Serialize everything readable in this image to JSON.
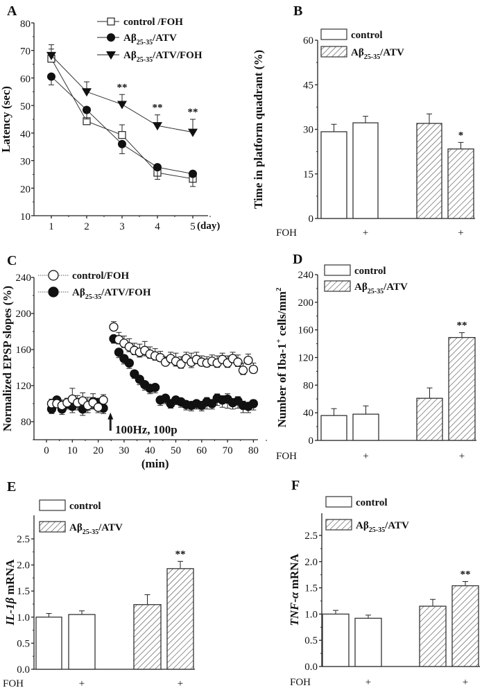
{
  "chart_data": [
    {
      "panel": "A",
      "type": "line",
      "xlabel": "(day)",
      "ylabel_parts": [
        {
          "t": "Latency (sec)"
        }
      ],
      "x": [
        1,
        2,
        3,
        4,
        5
      ],
      "xticks": [
        "1",
        "2",
        "3",
        "4",
        "5"
      ],
      "yticks": [
        10,
        20,
        30,
        40,
        50,
        60,
        70,
        80
      ],
      "ylim": [
        10,
        80
      ],
      "series": [
        {
          "name_parts": [
            "control /FOH",
            "",
            ""
          ],
          "marker": "open-square",
          "values": [
            67.0,
            44.3,
            39.3,
            25.6,
            23.4
          ],
          "errors": [
            3.5,
            3.4,
            3.7,
            3.0,
            2.7
          ]
        },
        {
          "name_parts": [
            "Aβ",
            "25-35",
            "/ATV"
          ],
          "marker": "filled-circle",
          "values": [
            60.5,
            48.4,
            36.0,
            27.6,
            25.2
          ],
          "errors": [
            3.0,
            3.3,
            3.5,
            4.4,
            4.6
          ]
        },
        {
          "name_parts": [
            "Aβ",
            "25-35",
            "/ATV/FOH"
          ],
          "marker": "filled-triangle-down",
          "values": [
            68.2,
            55.0,
            50.4,
            42.7,
            40.3
          ],
          "errors": [
            3.9,
            3.6,
            3.6,
            3.9,
            4.7
          ]
        }
      ],
      "annotations": [
        {
          "x": 3,
          "y": 54.0,
          "text": "**"
        },
        {
          "x": 4,
          "y": 46.6,
          "text": "**"
        },
        {
          "x": 5,
          "y": 45.0,
          "text": "**"
        }
      ]
    },
    {
      "panel": "B",
      "type": "bar",
      "ylabel_parts": [
        {
          "t": "Time in platform quadrant (%)"
        }
      ],
      "yticks": [
        0,
        15,
        30,
        45,
        60
      ],
      "ylim": [
        0,
        60
      ],
      "groups": [
        {
          "name_parts": [
            "control",
            "",
            ""
          ],
          "pattern": "open"
        },
        {
          "name_parts": [
            "Aβ",
            "25-35",
            "/ATV"
          ],
          "pattern": "hatched"
        }
      ],
      "bars": [
        {
          "group": 0,
          "value": 29.2,
          "error": 2.5,
          "annotation": ""
        },
        {
          "group": 0,
          "value": 32.2,
          "error": 2.2,
          "annotation": ""
        },
        {
          "group": 1,
          "value": 32.0,
          "error": 3.2,
          "annotation": ""
        },
        {
          "group": 1,
          "value": 23.4,
          "error": 2.2,
          "annotation": "*"
        }
      ],
      "row_label": "FOH",
      "row_marks": [
        "",
        "+",
        "",
        "+"
      ]
    },
    {
      "panel": "C",
      "type": "scatter",
      "xlabel": "(min)",
      "ylabel_parts": [
        {
          "t": "Normalized EPSP slopes (%)"
        }
      ],
      "xticks": [
        0,
        10,
        20,
        30,
        40,
        50,
        60,
        70,
        80
      ],
      "yticks": [
        80,
        120,
        160,
        200,
        240
      ],
      "xlim": [
        -5,
        82
      ],
      "ylim": [
        60,
        240
      ],
      "stimulus_label": "100Hz, 100p",
      "stimulus_x": 25,
      "series": [
        {
          "name_parts": [
            "control/FOH",
            "",
            ""
          ],
          "marker": "open-circle",
          "x": [
            2,
            4,
            6,
            8,
            10,
            12,
            14,
            16,
            18,
            20,
            22,
            26,
            28,
            30,
            32,
            34,
            36,
            38,
            40,
            42,
            44,
            46,
            48,
            50,
            52,
            54,
            56,
            58,
            60,
            62,
            64,
            66,
            68,
            70,
            72,
            74,
            76,
            78,
            80
          ],
          "values": [
            100,
            100,
            98,
            101,
            105,
            101,
            103,
            98,
            101,
            96,
            104,
            185,
            171,
            167,
            163,
            159,
            157,
            159,
            155,
            153,
            151,
            146,
            150,
            147,
            144,
            150,
            146,
            149,
            146,
            145,
            147,
            145,
            149,
            145,
            150,
            146,
            137,
            148,
            138
          ],
          "errors": [
            5,
            6,
            6,
            5,
            12,
            8,
            9,
            9,
            10,
            10,
            6,
            6,
            8,
            8,
            9,
            8,
            9,
            10,
            8,
            8,
            7,
            6,
            7,
            9,
            8,
            7,
            10,
            8,
            7,
            7,
            7,
            8,
            7,
            8,
            7,
            8,
            8,
            7,
            7
          ]
        },
        {
          "name_parts": [
            "Aβ",
            "25-35",
            "/ATV/FOH"
          ],
          "marker": "filled-circle",
          "x": [
            2,
            4,
            6,
            8,
            10,
            12,
            14,
            16,
            18,
            20,
            22,
            26,
            28,
            30,
            32,
            34,
            36,
            38,
            40,
            42,
            44,
            46,
            48,
            50,
            52,
            54,
            56,
            58,
            60,
            62,
            64,
            66,
            68,
            70,
            72,
            74,
            76,
            78,
            80
          ],
          "values": [
            94,
            104,
            94,
            100,
            97,
            101,
            94,
            98,
            102,
            101,
            95,
            172,
            157,
            150,
            145,
            133,
            127,
            121,
            117,
            118,
            104,
            106,
            100,
            104,
            102,
            99,
            98,
            100,
            98,
            102,
            100,
            106,
            104,
            105,
            101,
            103,
            98,
            97,
            100
          ],
          "errors": [
            5,
            6,
            6,
            6,
            7,
            8,
            7,
            8,
            8,
            7,
            6,
            5,
            6,
            6,
            6,
            5,
            6,
            6,
            6,
            6,
            6,
            6,
            5,
            5,
            6,
            6,
            6,
            6,
            6,
            8,
            6,
            8,
            8,
            10,
            7,
            8,
            8,
            7,
            7
          ]
        }
      ]
    },
    {
      "panel": "D",
      "type": "bar",
      "ylabel_parts": [
        {
          "t": "Number of Iba-1"
        },
        {
          "t": "+",
          "s": "sup"
        },
        {
          "t": " cells/mm"
        },
        {
          "t": "2",
          "s": "sup"
        }
      ],
      "yticks": [
        0,
        40,
        80,
        120,
        160,
        200,
        240
      ],
      "ylim": [
        0,
        240
      ],
      "groups": [
        {
          "name_parts": [
            "control",
            "",
            ""
          ],
          "pattern": "open"
        },
        {
          "name_parts": [
            "Aβ",
            "25-35",
            "/ATV"
          ],
          "pattern": "hatched"
        }
      ],
      "bars": [
        {
          "group": 0,
          "value": 36,
          "error": 10,
          "annotation": ""
        },
        {
          "group": 0,
          "value": 38,
          "error": 12,
          "annotation": ""
        },
        {
          "group": 1,
          "value": 61,
          "error": 15,
          "annotation": ""
        },
        {
          "group": 1,
          "value": 149,
          "error": 7,
          "annotation": "**"
        }
      ],
      "row_label": "FOH",
      "row_marks": [
        "",
        "+",
        "",
        "+"
      ]
    },
    {
      "panel": "E",
      "type": "bar",
      "ylabel_parts": [
        {
          "t": "IL-1β",
          "s": "italic"
        },
        {
          "t": " mRNA"
        }
      ],
      "yticks": [
        0.0,
        0.5,
        1.0,
        1.5,
        2.0,
        2.5
      ],
      "ytick_labels": [
        "0.0",
        "0.5",
        "1.0",
        "1.5",
        "2.0",
        "2.5"
      ],
      "ylim": [
        0,
        2.8
      ],
      "groups": [
        {
          "name_parts": [
            "control",
            "",
            ""
          ],
          "pattern": "open"
        },
        {
          "name_parts": [
            "Aβ",
            "25-35",
            "/ATV"
          ],
          "pattern": "hatched"
        }
      ],
      "bars": [
        {
          "group": 0,
          "value": 1.0,
          "error": 0.07,
          "annotation": ""
        },
        {
          "group": 0,
          "value": 1.05,
          "error": 0.07,
          "annotation": ""
        },
        {
          "group": 1,
          "value": 1.24,
          "error": 0.19,
          "annotation": ""
        },
        {
          "group": 1,
          "value": 1.93,
          "error": 0.14,
          "annotation": "**"
        }
      ],
      "row_label": "FOH",
      "row_marks": [
        "",
        "+",
        "",
        "+"
      ]
    },
    {
      "panel": "F",
      "type": "bar",
      "ylabel_parts": [
        {
          "t": "TNF-α",
          "s": "italic"
        },
        {
          "t": " mRNA"
        }
      ],
      "yticks": [
        0.0,
        0.5,
        1.0,
        1.5,
        2.0,
        2.5
      ],
      "ytick_labels": [
        "0.0",
        "0.5",
        "1.0",
        "1.5",
        "2.0",
        "2.5"
      ],
      "ylim": [
        0,
        2.8
      ],
      "groups": [
        {
          "name_parts": [
            "control",
            "",
            ""
          ],
          "pattern": "open"
        },
        {
          "name_parts": [
            "Aβ",
            "25-35",
            "/ATV"
          ],
          "pattern": "hatched"
        }
      ],
      "bars": [
        {
          "group": 0,
          "value": 1.0,
          "error": 0.07,
          "annotation": ""
        },
        {
          "group": 0,
          "value": 0.92,
          "error": 0.06,
          "annotation": ""
        },
        {
          "group": 1,
          "value": 1.15,
          "error": 0.13,
          "annotation": ""
        },
        {
          "group": 1,
          "value": 1.54,
          "error": 0.08,
          "annotation": "**"
        }
      ],
      "row_label": "FOH",
      "row_marks": [
        "",
        "+",
        "",
        "+"
      ]
    }
  ]
}
